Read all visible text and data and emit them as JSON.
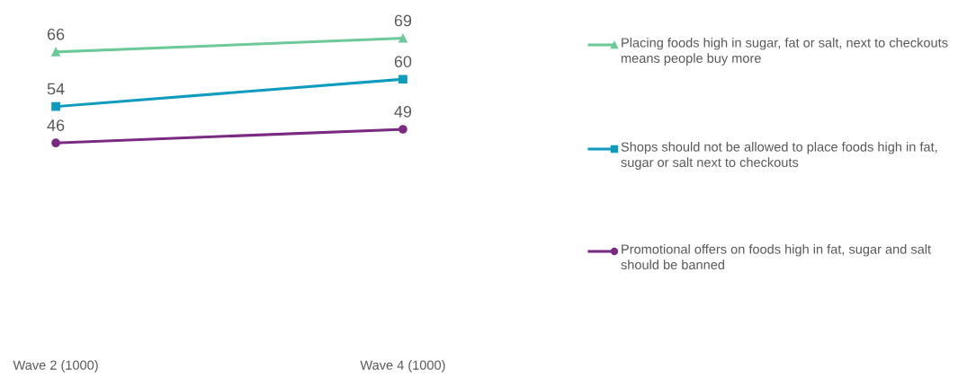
{
  "chart_data": {
    "type": "line",
    "categories": [
      "Wave 2 (1000)",
      "Wave 4 (1000)"
    ],
    "series": [
      {
        "name": "Placing foods high in sugar, fat or salt, next to checkouts means people buy more",
        "color": "#6cc998",
        "values": [
          66,
          69
        ],
        "marker": "triangle"
      },
      {
        "name": "Shops should not be allowed to place foods high in fat, sugar or salt next to checkouts",
        "color": "#0f9bbd",
        "values": [
          54,
          60
        ],
        "marker": "square"
      },
      {
        "name": "Promotional offers on foods high in fat, sugar and salt should be banned",
        "color": "#7b2a82",
        "values": [
          46,
          49
        ],
        "marker": "circle"
      }
    ],
    "data_labels": true,
    "legend": "right",
    "grid": false,
    "line_style": "solid"
  }
}
